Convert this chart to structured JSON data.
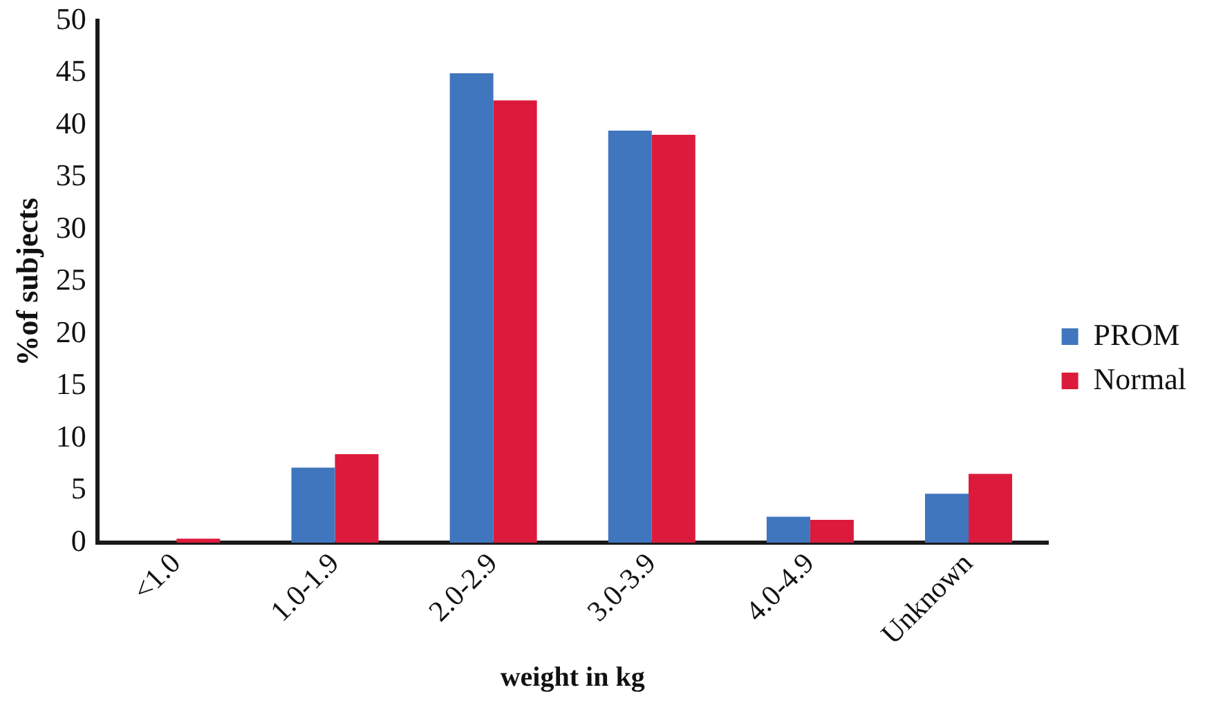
{
  "chart_data": {
    "type": "bar",
    "xlabel": "weight in kg",
    "ylabel": "%of subjects",
    "categories": [
      "<1.0",
      "1.0-1.9",
      "2.0-2.9",
      "3.0-3.9",
      "4.0-4.9",
      "Unknown"
    ],
    "series": [
      {
        "name": "PROM",
        "color": "#3f76be",
        "values": [
          0,
          7.2,
          45,
          39.5,
          2.5,
          4.7
        ]
      },
      {
        "name": "Normal",
        "color": "#dc1b3c",
        "values": [
          0.4,
          8.5,
          42.4,
          39.1,
          2.2,
          6.6
        ]
      }
    ],
    "ylim": [
      0,
      50
    ],
    "yticks": [
      0,
      5,
      10,
      15,
      20,
      25,
      30,
      35,
      40,
      45,
      50
    ],
    "grid": false,
    "legend": "right"
  }
}
